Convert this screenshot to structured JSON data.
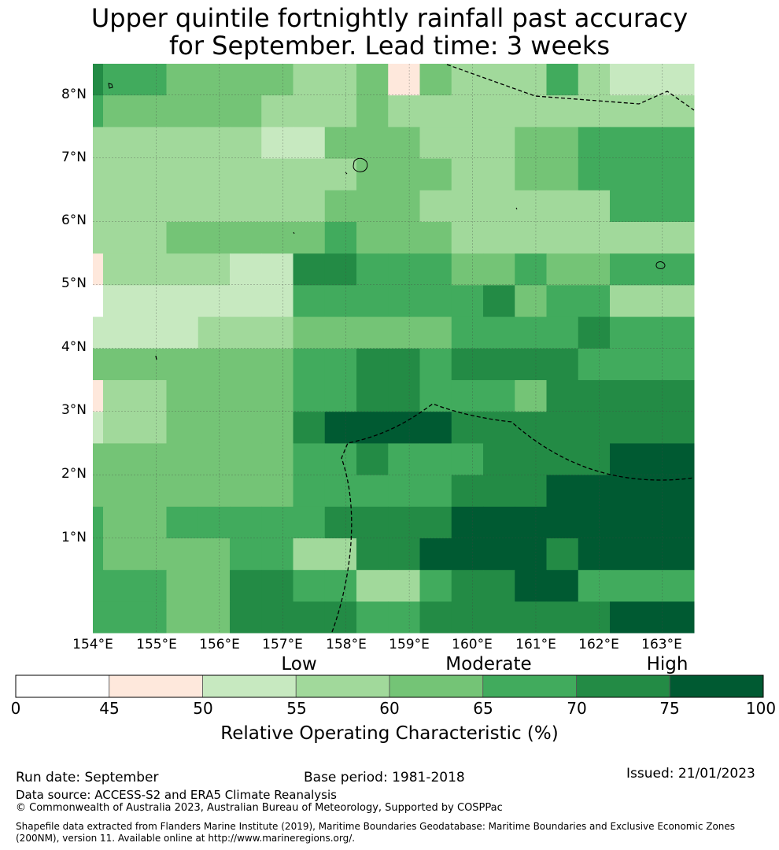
{
  "title_lines": [
    "Upper quintile fortnightly rainfall past accuracy",
    "for September. Lead time: 3 weeks"
  ],
  "map": {
    "lon_labels": [
      "154°E",
      "155°E",
      "156°E",
      "157°E",
      "158°E",
      "159°E",
      "160°E",
      "161°E",
      "162°E",
      "163°E"
    ],
    "lat_labels": [
      "8°N",
      "7°N",
      "6°N",
      "5°N",
      "4°N",
      "3°N",
      "2°N",
      "1°N"
    ],
    "grid_rows": [
      [
        5,
        4,
        4,
        3,
        3,
        3,
        3,
        2,
        2,
        3,
        0,
        3,
        2,
        2,
        2,
        4,
        2,
        1
      ],
      [
        4,
        3,
        3,
        3,
        3,
        3,
        2,
        2,
        2,
        3,
        2,
        2,
        2,
        2,
        2,
        2,
        2,
        2
      ],
      [
        2,
        2,
        2,
        2,
        2,
        2,
        1,
        1,
        3,
        3,
        3,
        2,
        2,
        2,
        3,
        3,
        4,
        4
      ],
      [
        2,
        2,
        2,
        2,
        2,
        2,
        2,
        2,
        2,
        3,
        3,
        3,
        2,
        2,
        3,
        3,
        4,
        4
      ],
      [
        2,
        2,
        2,
        2,
        2,
        2,
        2,
        2,
        3,
        3,
        3,
        2,
        2,
        2,
        2,
        2,
        2,
        4
      ],
      [
        2,
        2,
        2,
        3,
        3,
        3,
        3,
        3,
        4,
        3,
        3,
        3,
        2,
        2,
        2,
        2,
        2,
        2
      ],
      [
        0,
        2,
        2,
        2,
        2,
        1,
        1,
        5,
        5,
        4,
        4,
        4,
        3,
        3,
        4,
        3,
        3,
        4
      ],
      [
        -1,
        1,
        1,
        1,
        1,
        1,
        1,
        4,
        4,
        4,
        4,
        4,
        4,
        5,
        3,
        4,
        4,
        2
      ],
      [
        1,
        1,
        1,
        1,
        2,
        2,
        2,
        3,
        3,
        3,
        3,
        3,
        4,
        4,
        4,
        4,
        5,
        4
      ],
      [
        3,
        3,
        3,
        3,
        3,
        3,
        3,
        4,
        4,
        5,
        5,
        4,
        5,
        5,
        5,
        5,
        4,
        4
      ],
      [
        0,
        2,
        2,
        3,
        3,
        3,
        3,
        4,
        4,
        5,
        5,
        4,
        4,
        4,
        3,
        5,
        5,
        5
      ],
      [
        1,
        2,
        2,
        3,
        3,
        3,
        3,
        5,
        6,
        6,
        6,
        6,
        5,
        5,
        5,
        5,
        5,
        5
      ],
      [
        3,
        3,
        3,
        3,
        3,
        3,
        3,
        4,
        4,
        5,
        4,
        4,
        4,
        5,
        5,
        5,
        5,
        6
      ],
      [
        3,
        3,
        3,
        3,
        3,
        3,
        3,
        4,
        4,
        4,
        4,
        4,
        5,
        5,
        5,
        6,
        6,
        6
      ],
      [
        4,
        3,
        3,
        4,
        4,
        4,
        4,
        4,
        5,
        5,
        5,
        5,
        6,
        6,
        6,
        6,
        6,
        6
      ],
      [
        4,
        3,
        3,
        3,
        3,
        4,
        4,
        2,
        2,
        5,
        5,
        6,
        6,
        6,
        6,
        5,
        6,
        6
      ],
      [
        4,
        4,
        4,
        3,
        3,
        5,
        5,
        4,
        4,
        2,
        2,
        4,
        5,
        5,
        6,
        6,
        4,
        4
      ],
      [
        4,
        4,
        4,
        3,
        3,
        5,
        5,
        5,
        5,
        4,
        4,
        5,
        5,
        5,
        5,
        5,
        5,
        6
      ]
    ]
  },
  "colorbar": {
    "class_labels": [
      "Low",
      "Moderate",
      "High"
    ],
    "tick_labels": [
      "0",
      "45",
      "50",
      "55",
      "60",
      "65",
      "70",
      "75",
      "100"
    ],
    "colors": [
      "#ffffff",
      "#fee8dc",
      "#c7e9c0",
      "#a1d99b",
      "#74c476",
      "#41ab5d",
      "#238b45",
      "#005a32"
    ],
    "title": "Relative Operating Characteristic (%)"
  },
  "footer": {
    "run_date": "Run date: September",
    "base_period": "Base period: 1981-2018",
    "issued": "Issued: 21/01/2023",
    "data_source": "Data source: ACCESS-S2 and ERA5 Climate Reanalysis",
    "copyright": "© Commonwealth of Australia 2023, Australian Bureau of Meteorology, Supported by COSPPac",
    "shapefile_note": "Shapefile data extracted from Flanders Marine Institute (2019), Maritime Boundaries Geodatabase: Maritime Boundaries and Exclusive Economic Zones (200NM), version 11. Available online at http://www.marineregions.org/."
  }
}
